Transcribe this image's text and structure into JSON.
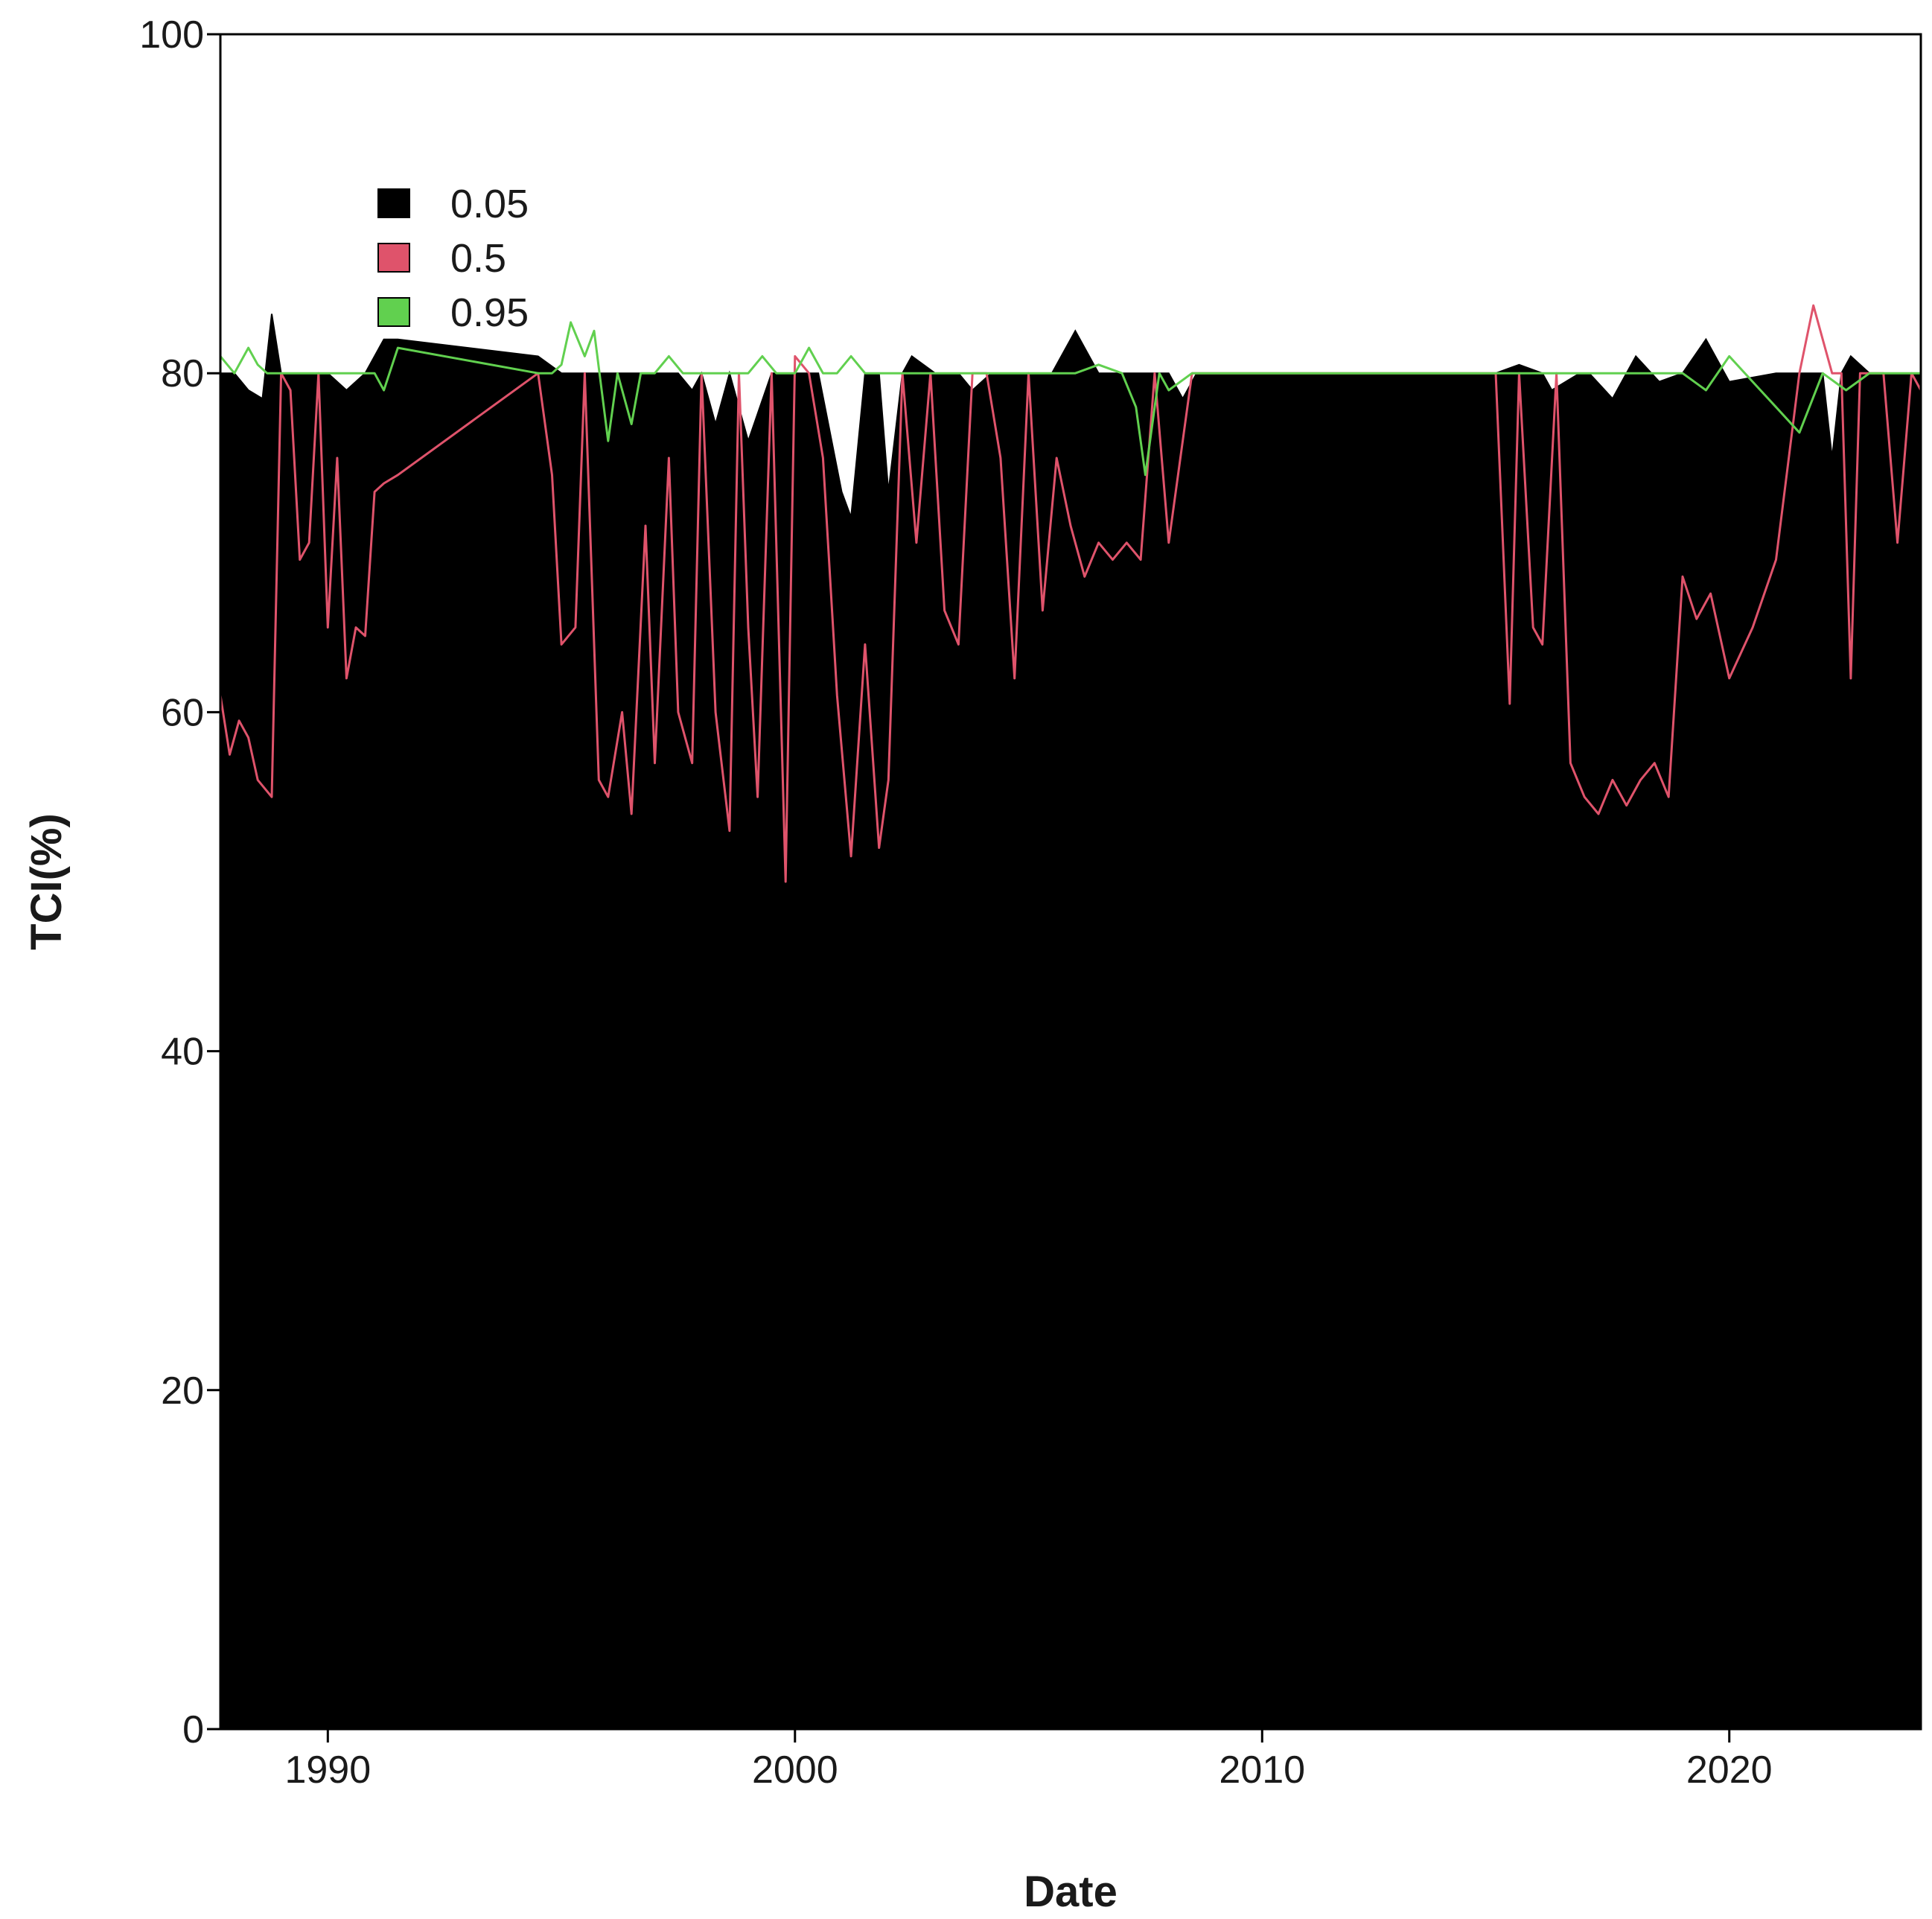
{
  "chart_data": {
    "type": "area",
    "title": "",
    "xlabel": "Date",
    "ylabel": "TCI(%)",
    "xlim": [
      1987.7,
      2024.1
    ],
    "ylim": [
      0,
      100
    ],
    "xticks": [
      1990,
      2000,
      2010,
      2020
    ],
    "yticks": [
      0,
      20,
      40,
      60,
      80,
      100
    ],
    "grid": false,
    "legend_position": "top-left",
    "colors": {
      "0.05": "#000000",
      "0.5": "#DF536B",
      "0.95": "#61D04F"
    },
    "series": [
      {
        "name": "0.05",
        "style": "filled-area",
        "x": [
          1987.7,
          1988.0,
          1988.3,
          1988.6,
          1988.8,
          1989.0,
          1989.5,
          1990.0,
          1990.4,
          1990.8,
          1991.2,
          1991.5,
          1994.5,
          1995.0,
          1996.0,
          1997.0,
          1997.5,
          1997.8,
          1998.0,
          1998.3,
          1998.6,
          1999.0,
          1999.5,
          2000.0,
          2000.5,
          2001.0,
          2001.2,
          2001.5,
          2001.8,
          2002.0,
          2002.3,
          2002.5,
          2003.0,
          2003.5,
          2003.8,
          2004.2,
          2005.0,
          2005.5,
          2006.0,
          2006.5,
          2007.0,
          2007.5,
          2008.0,
          2008.3,
          2008.6,
          2009.0,
          2010.0,
          2015.0,
          2015.5,
          2016.0,
          2016.2,
          2016.8,
          2017.0,
          2017.5,
          2018.0,
          2018.5,
          2019.0,
          2019.5,
          2020.0,
          2021.0,
          2021.5,
          2022.0,
          2022.2,
          2022.4,
          2022.6,
          2023.0,
          2023.5,
          2024.1
        ],
        "values": [
          80,
          80,
          79,
          78.5,
          83.5,
          80,
          80,
          80,
          79,
          80,
          82,
          82,
          81,
          80,
          80,
          80,
          80,
          79,
          80,
          77,
          80,
          76,
          80,
          80,
          80,
          73,
          71.5,
          80,
          80,
          73,
          80,
          81,
          80,
          80,
          79,
          80,
          80,
          80,
          82.5,
          80,
          80,
          80,
          80,
          78.5,
          80,
          80,
          80,
          80,
          80.5,
          80,
          79,
          80,
          80,
          78.5,
          81,
          79.5,
          80,
          82,
          79.5,
          80,
          80,
          80,
          75,
          80,
          81,
          80,
          80,
          80
        ]
      },
      {
        "name": "0.5",
        "style": "line",
        "x": [
          1987.7,
          1987.9,
          1988.1,
          1988.3,
          1988.5,
          1988.8,
          1989.0,
          1989.2,
          1989.4,
          1989.6,
          1989.8,
          1990.0,
          1990.2,
          1990.4,
          1990.6,
          1990.8,
          1991.0,
          1991.2,
          1991.5,
          1994.5,
          1994.8,
          1995.0,
          1995.3,
          1995.5,
          1995.8,
          1996.0,
          1996.3,
          1996.5,
          1996.8,
          1997.0,
          1997.3,
          1997.5,
          1997.8,
          1998.0,
          1998.3,
          1998.6,
          1998.8,
          1999.0,
          1999.2,
          1999.5,
          1999.8,
          2000.0,
          2000.3,
          2000.6,
          2000.9,
          2001.2,
          2001.5,
          2001.8,
          2002.0,
          2002.3,
          2002.6,
          2002.9,
          2003.2,
          2003.5,
          2003.8,
          2004.1,
          2004.4,
          2004.7,
          2005.0,
          2005.3,
          2005.6,
          2005.9,
          2006.2,
          2006.5,
          2006.8,
          2007.1,
          2007.4,
          2007.7,
          2008.0,
          2008.5,
          2009.0,
          2010.0,
          2013.0,
          2015.0,
          2015.3,
          2015.5,
          2015.8,
          2016.0,
          2016.3,
          2016.6,
          2016.9,
          2017.2,
          2017.5,
          2017.8,
          2018.1,
          2018.4,
          2018.7,
          2019.0,
          2019.3,
          2019.6,
          2020.0,
          2020.5,
          2021.0,
          2021.5,
          2021.8,
          2022.0,
          2022.2,
          2022.4,
          2022.6,
          2022.8,
          2023.0,
          2023.3,
          2023.6,
          2023.9,
          2024.1
        ],
        "values": [
          61,
          57.5,
          59.5,
          58.5,
          56,
          55,
          80,
          79,
          69,
          70,
          80,
          65,
          75,
          62,
          65,
          64.5,
          73,
          73.5,
          74,
          80,
          74,
          64,
          65,
          80,
          56,
          55,
          60,
          54,
          71,
          57,
          75,
          60,
          57,
          80,
          60,
          53,
          80,
          65,
          55,
          80,
          50,
          81,
          80,
          75,
          61,
          51.5,
          64,
          52,
          56,
          80,
          70,
          80,
          66,
          64,
          80,
          80,
          75,
          62,
          80,
          66,
          75,
          71,
          68,
          70,
          69,
          70,
          69,
          80,
          70,
          80,
          80,
          80,
          80,
          80,
          60.5,
          80,
          65,
          64,
          80,
          57,
          55,
          54,
          56,
          54.5,
          56,
          57,
          55,
          68,
          65.5,
          67,
          62,
          65,
          69,
          80,
          84,
          82,
          80,
          80,
          62,
          80,
          80,
          80,
          70,
          80,
          79
        ]
      },
      {
        "name": "0.95",
        "style": "line",
        "x": [
          1987.7,
          1988.0,
          1988.3,
          1988.5,
          1988.7,
          1989.0,
          1990.0,
          1991.0,
          1991.2,
          1991.5,
          1994.5,
          1994.8,
          1995.0,
          1995.2,
          1995.5,
          1995.7,
          1996.0,
          1996.2,
          1996.5,
          1996.7,
          1997.0,
          1997.3,
          1997.6,
          1998.0,
          1998.5,
          1999.0,
          1999.3,
          1999.6,
          2000.0,
          2000.3,
          2000.6,
          2000.9,
          2001.2,
          2001.5,
          2001.8,
          2002.0,
          2002.5,
          2003.0,
          2003.5,
          2004.0,
          2004.5,
          2005.0,
          2006.0,
          2006.5,
          2007.0,
          2007.3,
          2007.5,
          2007.8,
          2008.0,
          2008.5,
          2009.0,
          2010.0,
          2013.0,
          2015.0,
          2018.0,
          2019.0,
          2019.5,
          2020.0,
          2020.5,
          2021.0,
          2021.5,
          2022.0,
          2022.5,
          2023.0,
          2024.1
        ],
        "values": [
          81,
          80,
          81.5,
          80.5,
          80,
          80,
          80,
          80,
          79,
          81.5,
          80,
          80,
          80.5,
          83,
          81,
          82.5,
          76,
          80,
          77,
          80,
          80,
          81,
          80,
          80,
          80,
          80,
          81,
          80,
          80,
          81.5,
          80,
          80,
          81,
          80,
          80,
          80,
          80,
          80,
          80,
          80,
          80,
          80,
          80,
          80.5,
          80,
          78,
          74,
          80,
          79,
          80,
          80,
          80,
          80,
          80,
          80,
          80,
          79,
          81,
          79.5,
          78,
          76.5,
          80,
          79,
          80,
          80
        ]
      }
    ]
  }
}
